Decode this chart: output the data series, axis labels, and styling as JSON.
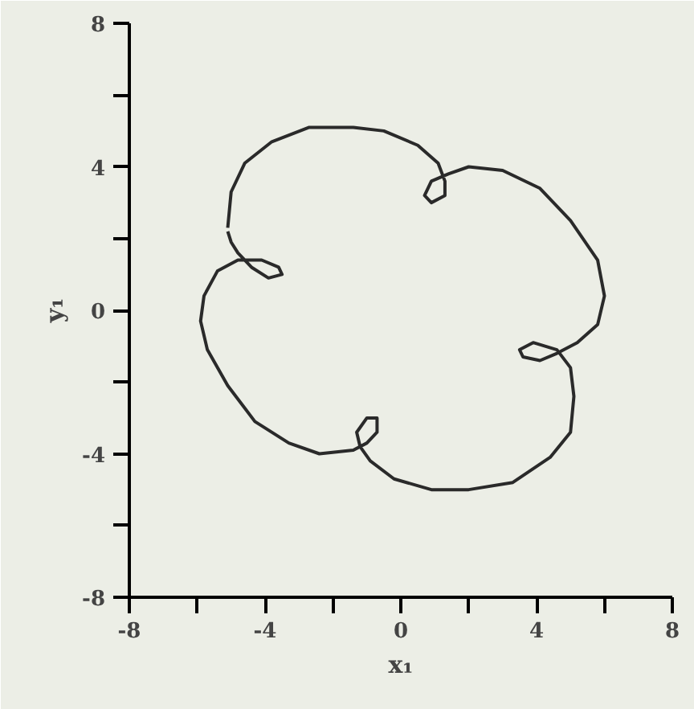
{
  "chart_data": {
    "type": "line",
    "xlabel": "x₁",
    "ylabel": "y₁",
    "xlim": [
      -8,
      8
    ],
    "ylim": [
      -8,
      8
    ],
    "xticks": [
      -8,
      {
        "value": -6,
        "label": null
      },
      -4,
      {
        "value": -2,
        "label": null
      },
      0,
      {
        "value": 2,
        "label": null
      },
      4,
      {
        "value": 6,
        "label": null
      },
      8
    ],
    "yticks": [
      -8,
      {
        "value": -6,
        "label": null
      },
      -4,
      {
        "value": -2,
        "label": null
      },
      0,
      {
        "value": 2,
        "label": null
      },
      4,
      {
        "value": 6,
        "label": null
      },
      8
    ],
    "grid": false,
    "marker": "none",
    "line_style": "solid",
    "x": [
      -5.1,
      -5.0,
      -4.6,
      -3.8,
      -2.7,
      -1.4,
      -0.5,
      0.5,
      1.1,
      1.3,
      1.3,
      0.9,
      0.7,
      0.9,
      1.4,
      2.0,
      3.0,
      4.1,
      5.0,
      5.8,
      6.0,
      5.8,
      5.2,
      4.6,
      4.1,
      3.6,
      3.5,
      3.9,
      4.6,
      5.0,
      5.1,
      5.0,
      4.4,
      3.3,
      2.0,
      0.9,
      -0.2,
      -0.9,
      -1.2,
      -1.3,
      -1.0,
      -0.7,
      -0.7,
      -1.0,
      -1.4,
      -2.4,
      -3.3,
      -4.3,
      -5.1,
      -5.7,
      -5.9,
      -5.8,
      -5.4,
      -4.8,
      -4.1,
      -3.6,
      -3.5,
      -3.9,
      -4.4,
      -4.8,
      -5.0,
      -5.1
    ],
    "series": [
      {
        "color": "#2a2a2a",
        "values": [
          2.3,
          3.3,
          4.1,
          4.7,
          5.1,
          5.1,
          5.0,
          4.6,
          4.1,
          3.6,
          3.2,
          3.0,
          3.2,
          3.6,
          3.8,
          4.0,
          3.9,
          3.4,
          2.5,
          1.4,
          0.4,
          -0.4,
          -0.9,
          -1.2,
          -1.4,
          -1.3,
          -1.1,
          -0.9,
          -1.1,
          -1.6,
          -2.4,
          -3.4,
          -4.1,
          -4.8,
          -5.0,
          -5.0,
          -4.7,
          -4.2,
          -3.8,
          -3.4,
          -3.0,
          -3.0,
          -3.4,
          -3.7,
          -3.9,
          -4.0,
          -3.7,
          -3.1,
          -2.1,
          -1.1,
          -0.3,
          0.4,
          1.1,
          1.4,
          1.4,
          1.2,
          1.0,
          0.9,
          1.2,
          1.6,
          1.9,
          2.2
        ]
      }
    ]
  }
}
